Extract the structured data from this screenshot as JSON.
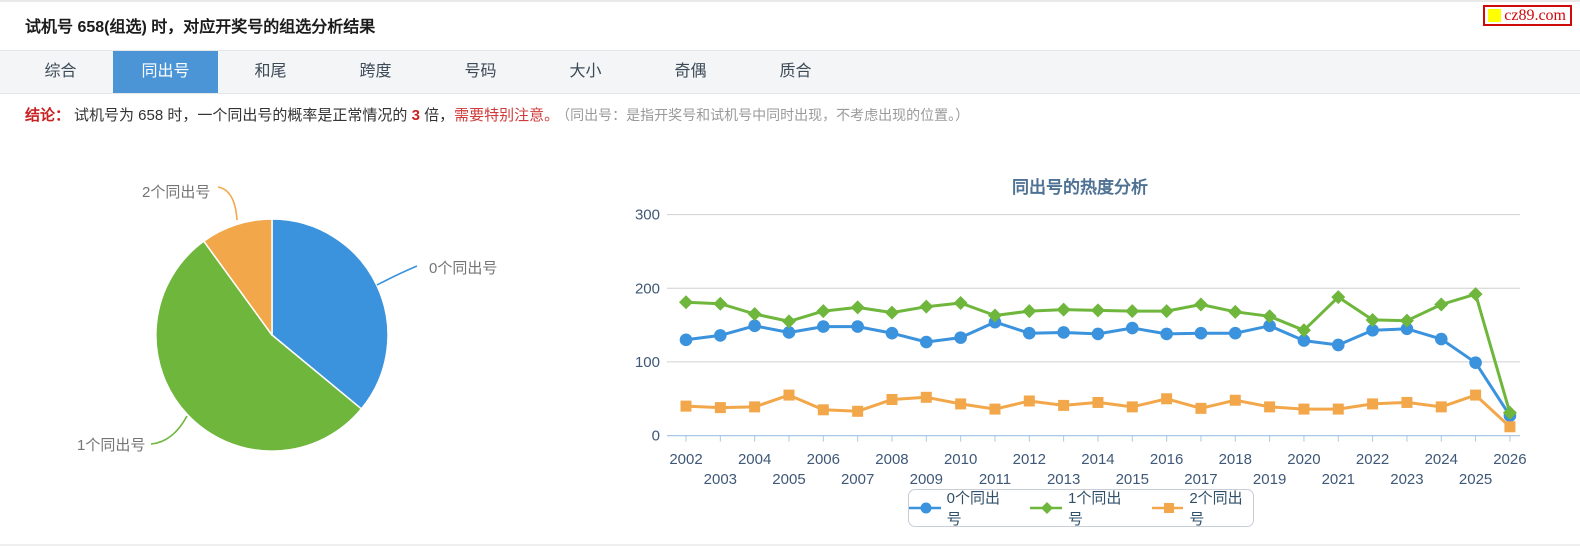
{
  "page": {
    "title": "试机号 658(组选) 时，对应开奖号的组选分析结果",
    "logo_text": "cz89.com",
    "tabs": [
      "综合",
      "同出号",
      "和尾",
      "跨度",
      "号码",
      "大小",
      "奇偶",
      "质合"
    ],
    "active_tab_index": 1,
    "conclusion": {
      "prefix": "结论：",
      "text_1": "试机号为 658 时，一个同出号的概率是正常情况的 ",
      "highlight_number": "3",
      "text_2": " 倍，",
      "warning": "需要特别注意。",
      "note": "（同出号：是指开奖号和试机号中同时出现，不考虑出现的位置。）"
    }
  },
  "colors": {
    "blue": "#3b92dd",
    "green": "#6fb63c",
    "orange": "#f2a74b",
    "tab_active_bg": "#4b95d6",
    "red": "#c92121",
    "grid": "#d0d0d0",
    "axis": "#a8c8e6"
  },
  "chart_data": [
    {
      "type": "pie",
      "labels": [
        "0个同出号",
        "1个同出号",
        "2个同出号"
      ],
      "values_percent": [
        36,
        54,
        10
      ],
      "colors": [
        "#3b92dd",
        "#6fb63c",
        "#f2a74b"
      ],
      "start_angle": "12 o'clock, clockwise",
      "legend_position": "outside-callout-labels"
    },
    {
      "type": "line",
      "title": "同出号的热度分析",
      "x": [
        2002,
        2003,
        2004,
        2005,
        2006,
        2007,
        2008,
        2009,
        2010,
        2011,
        2012,
        2013,
        2014,
        2015,
        2016,
        2017,
        2018,
        2019,
        2020,
        2021,
        2022,
        2023,
        2024,
        2025,
        2026
      ],
      "series": [
        {
          "name": "0个同出号",
          "marker": "circle",
          "color": "#3b92dd",
          "values": [
            130,
            136,
            149,
            140,
            148,
            148,
            139,
            127,
            133,
            154,
            139,
            140,
            138,
            146,
            138,
            139,
            139,
            149,
            129,
            123,
            143,
            145,
            131,
            99,
            27
          ]
        },
        {
          "name": "1个同出号",
          "marker": "diamond",
          "color": "#6fb63c",
          "values": [
            181,
            179,
            165,
            155,
            169,
            174,
            167,
            175,
            180,
            163,
            169,
            171,
            170,
            169,
            169,
            178,
            168,
            162,
            143,
            188,
            157,
            156,
            178,
            192,
            31
          ]
        },
        {
          "name": "2个同出号",
          "marker": "square",
          "color": "#f2a74b",
          "values": [
            40,
            38,
            39,
            55,
            35,
            33,
            49,
            52,
            43,
            36,
            47,
            41,
            45,
            39,
            50,
            37,
            48,
            39,
            36,
            36,
            43,
            45,
            39,
            55,
            12
          ]
        }
      ],
      "ylim": [
        0,
        300
      ],
      "yticks": [
        0,
        100,
        200,
        300
      ],
      "grid": true,
      "legend_position": "bottom"
    }
  ]
}
